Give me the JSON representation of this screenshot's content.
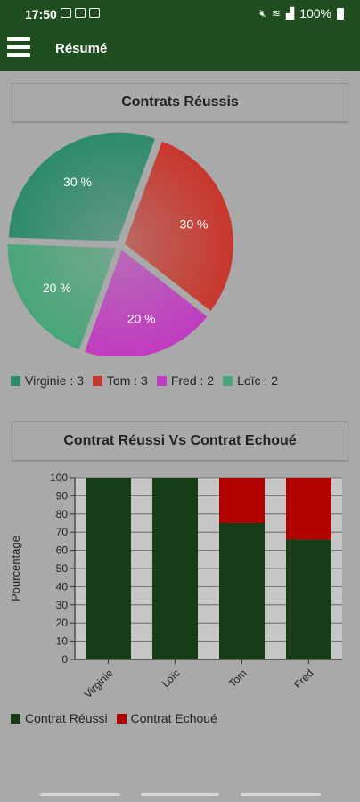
{
  "status_bar": {
    "time": "17:50",
    "left_icons": [
      "sim-icon",
      "app-icon",
      "image-icon"
    ],
    "right_icons": [
      "mute-icon",
      "wifi-icon",
      "signal-icon"
    ],
    "battery": "100%"
  },
  "app_bar": {
    "title": "Résumé",
    "menu_icon": "hamburger-menu-icon"
  },
  "pie_section": {
    "title": "Contrats Réussis",
    "legend": [
      {
        "label": "Virginie : 3",
        "color": "#2e8b6b"
      },
      {
        "label": "Tom : 3",
        "color": "#c8372d"
      },
      {
        "label": "Fred : 2",
        "color": "#c03cc0"
      },
      {
        "label": "Loïc : 2",
        "color": "#4aa67a"
      }
    ]
  },
  "bar_section": {
    "title": "Contrat Réussi Vs Contrat Echoué",
    "legend": [
      {
        "label": "Contrat Réussi",
        "color": "#173d17"
      },
      {
        "label": "Contrat Echoué",
        "color": "#b00000"
      }
    ]
  },
  "chart_data": [
    {
      "type": "pie",
      "title": "Contrats Réussis",
      "slices": [
        {
          "label": "Virginie",
          "value": 3,
          "percent_label": "30 %",
          "color": "#2e8b6b"
        },
        {
          "label": "Tom",
          "value": 3,
          "percent_label": "30 %",
          "color": "#c8372d"
        },
        {
          "label": "Fred",
          "value": 2,
          "percent_label": "20 %",
          "color": "#c03cc0"
        },
        {
          "label": "Loïc",
          "value": 2,
          "percent_label": "20 %",
          "color": "#4aa67a"
        }
      ],
      "legend_position": "bottom-left"
    },
    {
      "type": "bar",
      "stacked": true,
      "title": "Contrat Réussi Vs Contrat Echoué",
      "categories": [
        "Virginie",
        "Loïc",
        "Tom",
        "Fred"
      ],
      "series": [
        {
          "name": "Contrat Réussi",
          "values": [
            100,
            100,
            75,
            66
          ],
          "color": "#173d17"
        },
        {
          "name": "Contrat Echoué",
          "values": [
            0,
            0,
            25,
            34
          ],
          "color": "#b00000"
        }
      ],
      "ylabel": "Pourcentage",
      "ylim": [
        0,
        100
      ],
      "yticks": [
        "0",
        "10",
        "20",
        "30",
        "40",
        "50",
        "60",
        "70",
        "80",
        "90",
        "100"
      ],
      "grid": true,
      "legend_position": "bottom-left"
    }
  ]
}
